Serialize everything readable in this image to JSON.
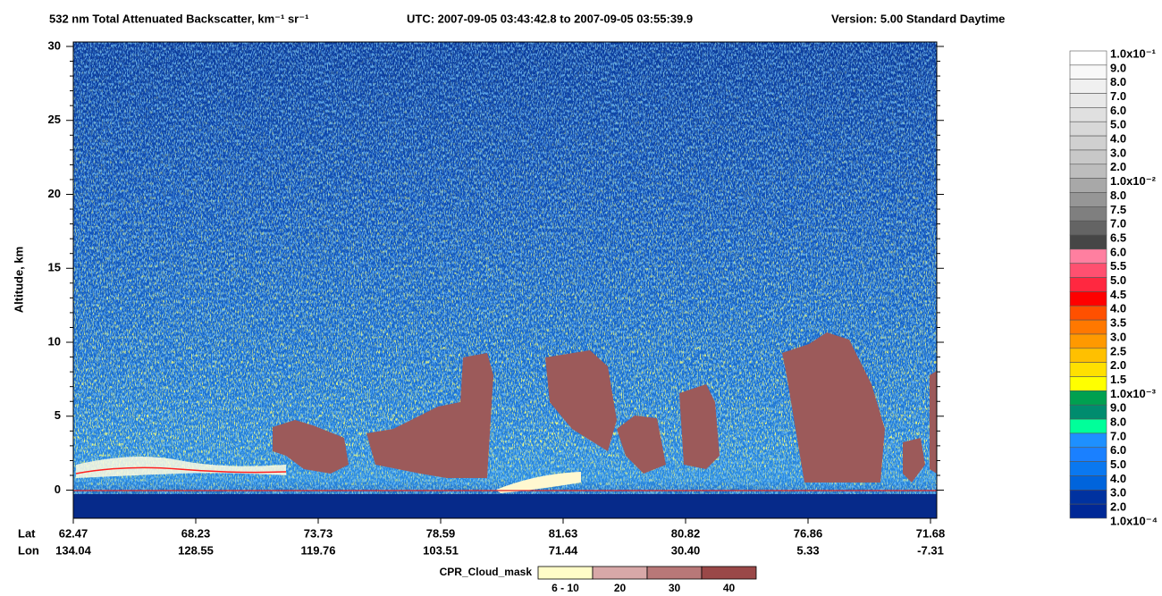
{
  "chart_data": {
    "type": "heatmap",
    "title": "532 nm Total Attenuated Backscatter, km⁻¹ sr⁻¹",
    "time_range": "UTC:  2007-09-05 03:43:42.8  to  2007-09-05 03:55:39.9",
    "version": "Version: 5.00  Standard  Daytime",
    "ylabel": "Altitude, km",
    "ylim": [
      -1.9,
      30.3
    ],
    "yticks": [
      0,
      5,
      10,
      15,
      20,
      25,
      30
    ],
    "lat_label": "Lat",
    "lon_label": "Lon",
    "lat": [
      "62.47",
      "68.23",
      "73.73",
      "78.59",
      "81.63",
      "80.82",
      "76.86",
      "71.68"
    ],
    "lon": [
      "134.04",
      "128.55",
      "119.76",
      "103.51",
      "71.44",
      "30.40",
      "5.33",
      "-7.31"
    ],
    "colorbar": {
      "labels": [
        "1.0x10⁻¹",
        "9.0",
        "8.0",
        "7.0",
        "6.0",
        "5.0",
        "4.0",
        "3.0",
        "2.0",
        "1.0x10⁻²",
        "8.0",
        "7.5",
        "7.0",
        "6.5",
        "6.0",
        "5.5",
        "5.0",
        "4.5",
        "4.0",
        "3.5",
        "3.0",
        "2.5",
        "2.0",
        "1.5",
        "1.0x10⁻³",
        "9.0",
        "8.0",
        "7.0",
        "6.0",
        "5.0",
        "4.0",
        "3.0",
        "2.0",
        "1.0x10⁻⁴"
      ],
      "colors": [
        "#ffffff",
        "#f8f8f8",
        "#f0f0f0",
        "#e8e8e8",
        "#e0e0e0",
        "#d8d8d8",
        "#d0d0d0",
        "#c8c8c8",
        "#bdbdbd",
        "#a8a8a8",
        "#969696",
        "#7f7f7f",
        "#646464",
        "#464646",
        "#ff7fa0",
        "#ff5070",
        "#ff2840",
        "#ff0000",
        "#ff5000",
        "#ff7800",
        "#ff9900",
        "#ffc000",
        "#ffe000",
        "#ffff00",
        "#00a050",
        "#008c6e",
        "#00ff9a",
        "#1e90ff",
        "#1a80ff",
        "#0a78f0",
        "#0064dc",
        "#0032a0",
        "#002896"
      ]
    },
    "cloud_mask": {
      "title": "CPR_Cloud_mask",
      "labels": [
        "6 - 10",
        "20",
        "30",
        "40"
      ],
      "colors": [
        "#fffcc8",
        "#d8a8a8",
        "#b87878",
        "#9a4848"
      ]
    }
  }
}
